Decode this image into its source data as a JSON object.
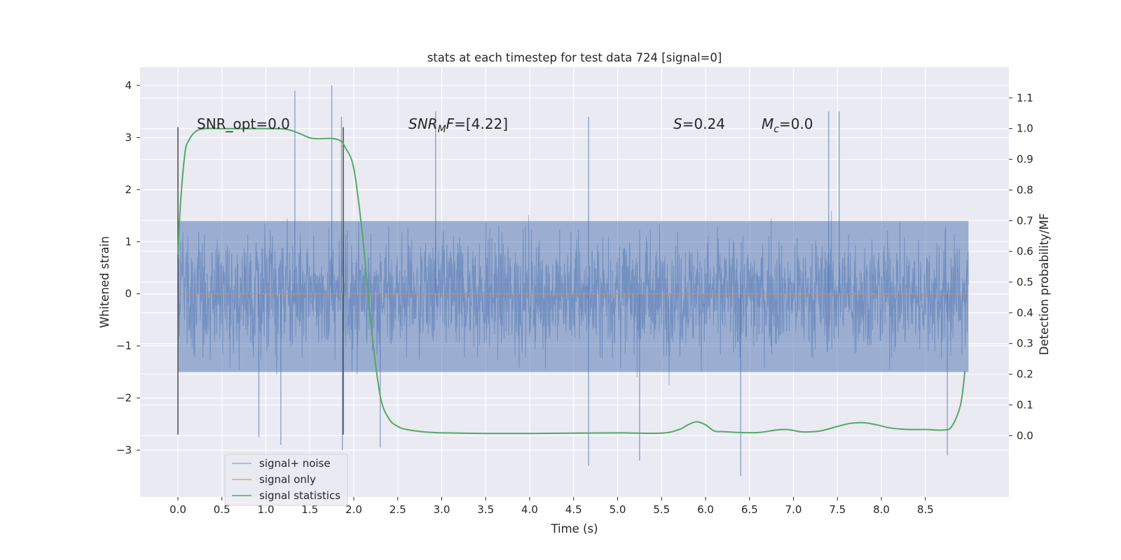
{
  "chart_data": {
    "type": "line",
    "title": "stats at each timestep for test data 724 [signal=0]",
    "xlabel": "Time (s)",
    "ylabel": "Whitened strain",
    "ylabel_right": "Detection probability/MF",
    "xlim": [
      -0.43,
      9.45
    ],
    "ylim": [
      -3.9,
      4.35
    ],
    "ylim_right": [
      -0.2,
      1.2
    ],
    "xticks": [
      "0.0",
      "0.5",
      "1.0",
      "1.5",
      "2.0",
      "2.5",
      "3.0",
      "3.5",
      "4.0",
      "4.5",
      "5.0",
      "5.5",
      "6.0",
      "6.5",
      "7.0",
      "7.5",
      "8.0",
      "8.5"
    ],
    "yticks": [
      "4",
      "3",
      "2",
      "1",
      "0",
      "−1",
      "−2",
      "−3"
    ],
    "yticks_right": [
      "1.1",
      "1.0",
      "0.9",
      "0.8",
      "0.7",
      "0.6",
      "0.5",
      "0.4",
      "0.3",
      "0.2",
      "0.1",
      "0.0"
    ],
    "series": [
      {
        "name": "signal+ noise",
        "color": "#4c72b0",
        "opacity": 0.5,
        "x_range": [
          0.0,
          8.99
        ],
        "band": [
          -1.5,
          1.4
        ],
        "spikes": [
          {
            "x": 1.33,
            "y": 3.9
          },
          {
            "x": 1.75,
            "y": 4.0
          },
          {
            "x": 1.86,
            "y": 3.4
          },
          {
            "x": 4.67,
            "y": 3.4
          },
          {
            "x": 7.4,
            "y": 3.5
          },
          {
            "x": 7.52,
            "y": 3.5
          },
          {
            "x": 2.93,
            "y": 3.5
          },
          {
            "x": 4.67,
            "y": -3.3
          },
          {
            "x": 6.4,
            "y": -3.5
          },
          {
            "x": 1.87,
            "y": -3.0
          },
          {
            "x": 2.3,
            "y": -2.95
          },
          {
            "x": 8.75,
            "y": -3.1
          },
          {
            "x": 5.25,
            "y": -3.2
          },
          {
            "x": 1.17,
            "y": -2.9
          },
          {
            "x": 0.92,
            "y": -2.75
          }
        ]
      },
      {
        "name": "signal only",
        "color": "#dd8452",
        "x": [
          0.0,
          8.99
        ],
        "y": [
          0.0,
          0.0
        ]
      },
      {
        "name": "signal statistics",
        "color": "#55a868",
        "axis": "right",
        "x": [
          0.0,
          0.03,
          0.08,
          0.12,
          0.2,
          0.3,
          0.5,
          0.8,
          1.0,
          1.2,
          1.3,
          1.4,
          1.5,
          1.6,
          1.75,
          1.85,
          1.9,
          2.0,
          2.1,
          2.2,
          2.3,
          2.4,
          2.5,
          2.6,
          2.8,
          3.0,
          3.5,
          4.0,
          4.5,
          5.0,
          5.5,
          5.7,
          5.8,
          5.9,
          6.0,
          6.1,
          6.2,
          6.4,
          6.6,
          6.8,
          6.9,
          7.0,
          7.1,
          7.3,
          7.5,
          7.65,
          7.8,
          7.95,
          8.1,
          8.3,
          8.5,
          8.7,
          8.8,
          8.9,
          8.95
        ],
        "y": [
          0.59,
          0.76,
          0.92,
          0.96,
          0.99,
          1.0,
          1.0,
          1.0,
          1.0,
          0.999,
          0.993,
          0.982,
          0.97,
          0.967,
          0.968,
          0.96,
          0.94,
          0.87,
          0.65,
          0.35,
          0.13,
          0.055,
          0.03,
          0.02,
          0.012,
          0.009,
          0.007,
          0.007,
          0.008,
          0.009,
          0.008,
          0.02,
          0.035,
          0.045,
          0.035,
          0.015,
          0.013,
          0.01,
          0.01,
          0.018,
          0.02,
          0.017,
          0.012,
          0.015,
          0.03,
          0.04,
          0.042,
          0.035,
          0.025,
          0.02,
          0.02,
          0.018,
          0.03,
          0.1,
          0.21
        ]
      }
    ],
    "vlines": [
      {
        "x": 0.0,
        "y_range": [
          -2.7,
          3.2
        ]
      },
      {
        "x": 1.88,
        "y_range": [
          -2.7,
          3.2
        ]
      }
    ],
    "annotations": {
      "snr_opt": "SNR_opt=0.0",
      "snr_mf": {
        "base": "SNR",
        "sub": "M",
        "rest": "F=[4.22]"
      },
      "s": {
        "sym": "S",
        "rest": "=0.24"
      },
      "mc": {
        "sym": "M",
        "sub": "c",
        "rest": "=0.0"
      }
    },
    "legend_position": "lower-left",
    "grid": true
  }
}
